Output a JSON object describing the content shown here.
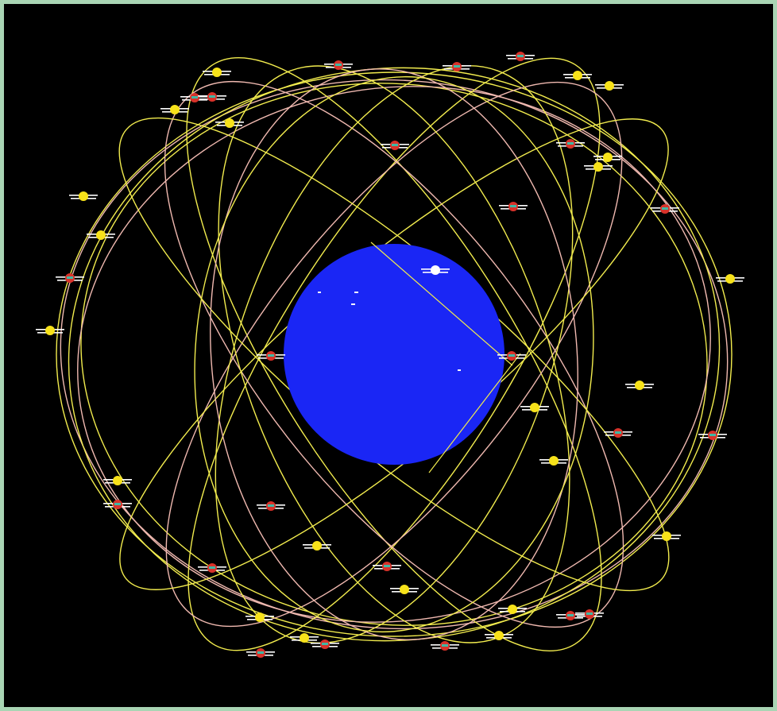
{
  "scene": {
    "background": "#000000",
    "frame_color": "#a9d5b4",
    "earth": {
      "color": "#1a26f5"
    },
    "orbit_colors": {
      "yellow": "#f2ec4e",
      "pink": "#f0b9b0"
    },
    "satellite_colors": {
      "yellow_type": "#f7e21a",
      "red_type": "#d8322a",
      "white_type": "#ffffff",
      "panel": "#ffffff"
    },
    "satellite_count": 58
  }
}
